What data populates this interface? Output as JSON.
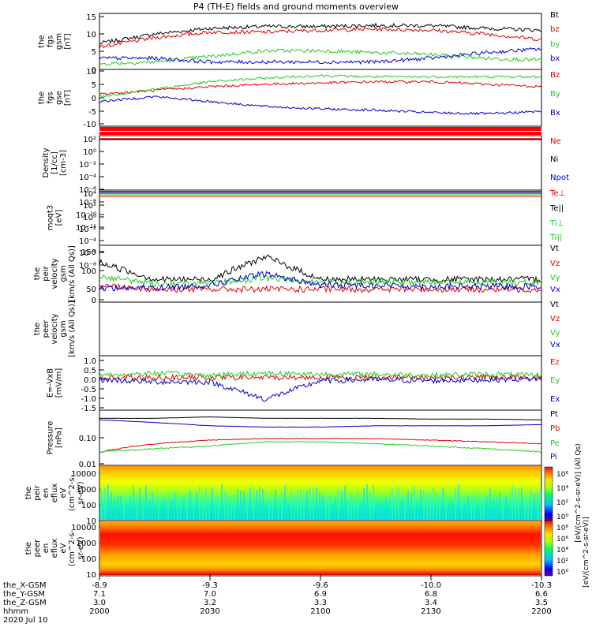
{
  "title": "P4 (TH-E) fields and ground moments overview",
  "colors": {
    "black": "#000000",
    "red": "#e00000",
    "green": "#22cc22",
    "blue": "#0000cc",
    "bar_red": "#ff0000"
  },
  "panels": [
    {
      "id": "fgs-gsm",
      "ylabel": [
        "the",
        "fgs",
        "gsm",
        "[nT]"
      ],
      "yticks": [
        "15",
        "10",
        "5",
        "0"
      ],
      "ylim": [
        0,
        15
      ],
      "scale": "linear",
      "legend": [
        {
          "text": "Bt",
          "color": "#000000"
        },
        {
          "text": "bz",
          "color": "#e00000"
        },
        {
          "text": "by",
          "color": "#22cc22"
        },
        {
          "text": "bx",
          "color": "#0000cc"
        }
      ]
    },
    {
      "id": "fgs-gse",
      "ylabel": [
        "the",
        "fgs",
        "gse",
        "[nT]"
      ],
      "yticks": [
        "10",
        "5",
        "0",
        "-5",
        "-10"
      ],
      "ylim": [
        -13,
        10
      ],
      "scale": "linear",
      "legend": [
        {
          "text": "Bz",
          "color": "#e00000"
        },
        {
          "text": "By",
          "color": "#22cc22"
        },
        {
          "text": "Bx",
          "color": "#0000cc"
        }
      ]
    },
    {
      "id": "density",
      "ylabel": [
        "Density",
        "[1/cc]",
        "[cm-3]"
      ],
      "yticks": [
        "10²",
        "10⁰",
        "10⁻²",
        "10⁻⁴",
        "10⁻⁶",
        "10⁻⁸",
        "10⁻¹⁰",
        "10⁻¹²"
      ],
      "scale": "log",
      "legend": [
        {
          "text": "Ne",
          "color": "#e00000"
        },
        {
          "text": "Ni",
          "color": "#000000"
        },
        {
          "text": "Npot",
          "color": "#0000cc"
        }
      ]
    },
    {
      "id": "temperature",
      "ylabel": [
        "moqt3",
        "[eV]"
      ],
      "yticks": [
        "10⁴",
        "10²",
        "10⁰",
        "10⁻²",
        "10⁻⁴",
        "10⁻⁶",
        "10⁻⁸"
      ],
      "scale": "log",
      "legend": [
        {
          "text": "Te⊥",
          "color": "#e00000"
        },
        {
          "text": "Te||",
          "color": "#000000"
        },
        {
          "text": "Ti⊥",
          "color": "#22cc22"
        },
        {
          "text": "Ti||",
          "color": "#22cc22"
        }
      ]
    },
    {
      "id": "peir-velocity",
      "ylabel": [
        "the",
        "peir",
        "velocity",
        "gsm",
        "[km/s (All Qs)]"
      ],
      "yticks": [
        "150",
        "100",
        "50",
        "0",
        "-50"
      ],
      "ylim": [
        -50,
        150
      ],
      "scale": "linear",
      "legend": [
        {
          "text": "Vt",
          "color": "#000000"
        },
        {
          "text": "Vz",
          "color": "#e00000"
        },
        {
          "text": "Vy",
          "color": "#22cc22"
        },
        {
          "text": "Vx",
          "color": "#0000cc"
        }
      ]
    },
    {
      "id": "peer-velocity",
      "ylabel": [
        "the",
        "peer",
        "velocity",
        "gsm",
        "[km/s (All Qs)]"
      ],
      "yticks": [],
      "scale": "linear",
      "legend": [
        {
          "text": "Vt",
          "color": "#000000"
        },
        {
          "text": "Vz",
          "color": "#e00000"
        },
        {
          "text": "Vy",
          "color": "#22cc22"
        },
        {
          "text": "Vx",
          "color": "#0000cc"
        }
      ]
    },
    {
      "id": "efield",
      "ylabel": [
        "E=-VxB",
        "[mV/m]"
      ],
      "yticks": [
        "1.0",
        "0.5",
        "0.0",
        "-0.5",
        "-1.0",
        "-1.5"
      ],
      "ylim": [
        -1.5,
        1.0
      ],
      "scale": "linear",
      "legend": [
        {
          "text": "Ez",
          "color": "#e00000"
        },
        {
          "text": "Ey",
          "color": "#22cc22"
        },
        {
          "text": "Ex",
          "color": "#0000cc"
        }
      ]
    },
    {
      "id": "pressure",
      "ylabel": [
        "Pressure",
        "[nPa]"
      ],
      "yticks": [
        "0.10",
        "0.01"
      ],
      "scale": "log",
      "legend": [
        {
          "text": "Pt",
          "color": "#000000"
        },
        {
          "text": "Pb",
          "color": "#e00000"
        },
        {
          "text": "Pe",
          "color": "#22cc22"
        },
        {
          "text": "Pi",
          "color": "#0000cc"
        }
      ]
    },
    {
      "id": "peir-eflux",
      "ylabel": [
        "the",
        "peir",
        "en",
        "eflux",
        "eV",
        "(cm^2-s-",
        "sr-eV)"
      ],
      "yticks": [
        "10000",
        "1000",
        "100",
        "10"
      ],
      "scale": "log"
    },
    {
      "id": "peer-eflux",
      "ylabel": [
        "the",
        "peer",
        "en",
        "eflux",
        "eV",
        "(cm^2-s-",
        "sr-eV)"
      ],
      "yticks": [
        "10000",
        "1000",
        "100",
        "10"
      ],
      "scale": "log"
    }
  ],
  "colorbars": [
    {
      "ticks": [
        "10⁶",
        "10⁴",
        "10²",
        "10⁰"
      ],
      "label": "[eV/(cm^2-s-sr-eV)] (All Qs)"
    },
    {
      "ticks": [
        "10⁸",
        "10⁶",
        "10⁴",
        "10²",
        "10⁰"
      ],
      "label": "[eV/(cm^2-s-sr-eV)]"
    }
  ],
  "x_axis": {
    "rows": [
      {
        "label": "the_X-GSM",
        "values": [
          "-8.9",
          "-9.3",
          "-9.6",
          "-10.0",
          "-10.3"
        ]
      },
      {
        "label": "the_Y-GSM",
        "values": [
          "7.1",
          "7.0",
          "6.9",
          "6.8",
          "6.6"
        ]
      },
      {
        "label": "the_Z-GSM",
        "values": [
          "3.0",
          "3.2",
          "3.3",
          "3.4",
          "3.5"
        ]
      },
      {
        "label": "hhmm",
        "values": [
          "2000",
          "2030",
          "2100",
          "2130",
          "2200"
        ]
      }
    ],
    "date": "2020 Jul 10"
  },
  "chart_data": {
    "type": "line",
    "title": "P4 (TH-E) fields and ground moments overview",
    "x_time_range": [
      "2000",
      "2200"
    ],
    "fgs_gsm": {
      "ylim": [
        0,
        15
      ],
      "series": [
        {
          "name": "Bt",
          "values": [
            7,
            9.5,
            11,
            11.5,
            11.5,
            11.8,
            11.7,
            11,
            10.5
          ]
        },
        {
          "name": "bz",
          "values": [
            6,
            8.5,
            10,
            10,
            10.5,
            10.8,
            10.5,
            9.5,
            8
          ]
        },
        {
          "name": "by",
          "values": [
            1.5,
            2,
            3.5,
            5,
            5,
            4.5,
            4,
            3,
            2.5
          ]
        },
        {
          "name": "bx",
          "values": [
            3,
            3,
            2,
            2,
            2,
            2,
            3,
            4.5,
            5.5
          ]
        }
      ]
    },
    "fgs_gse": {
      "ylim": [
        -13,
        10
      ],
      "series": [
        {
          "name": "Bz",
          "values": [
            0,
            1.5,
            3,
            4,
            4.5,
            5,
            5,
            4,
            3
          ]
        },
        {
          "name": "By",
          "values": [
            -1,
            2,
            5,
            6.5,
            7.5,
            7,
            7,
            7,
            7
          ]
        },
        {
          "name": "Bx",
          "values": [
            -3,
            -1,
            -3,
            -5,
            -6,
            -6.5,
            -7.5,
            -8,
            -7
          ]
        }
      ]
    },
    "peir_velocity": {
      "ylim": [
        -50,
        150
      ],
      "series": [
        {
          "name": "Vt",
          "values": [
            90,
            30,
            30,
            110,
            30,
            30,
            30,
            30,
            30
          ]
        },
        {
          "name": "Vz",
          "values": [
            10,
            -5,
            -5,
            -5,
            -5,
            -5,
            -5,
            -5,
            -5
          ]
        },
        {
          "name": "Vy",
          "values": [
            40,
            15,
            15,
            35,
            20,
            20,
            20,
            20,
            20
          ]
        },
        {
          "name": "Vx",
          "values": [
            0,
            0,
            10,
            50,
            10,
            10,
            5,
            5,
            5
          ]
        }
      ]
    },
    "efield": {
      "ylim": [
        -1.5,
        1.0
      ],
      "series": [
        {
          "name": "Ez",
          "values": [
            0,
            0,
            0,
            0,
            0,
            0,
            0,
            0,
            0
          ]
        },
        {
          "name": "Ey",
          "values": [
            0.1,
            0.2,
            0.1,
            0.2,
            0.15,
            0.15,
            0.1,
            0.15,
            0.1
          ]
        },
        {
          "name": "Ex",
          "values": [
            -0.1,
            -0.2,
            -0.2,
            -1.0,
            -0.15,
            -0.1,
            -0.15,
            -0.1,
            -0.05
          ]
        }
      ]
    },
    "pressure": {
      "ylim": [
        0.01,
        0.3
      ],
      "series": [
        {
          "name": "Pt",
          "values": [
            0.2,
            0.2,
            0.22,
            0.2,
            0.2,
            0.2,
            0.19,
            0.19,
            0.18
          ]
        },
        {
          "name": "Pb",
          "values": [
            0.02,
            0.035,
            0.045,
            0.05,
            0.05,
            0.05,
            0.045,
            0.04,
            0.035
          ]
        },
        {
          "name": "Pe",
          "values": [
            0.02,
            0.025,
            0.03,
            0.04,
            0.04,
            0.035,
            0.03,
            0.025,
            0.02
          ]
        },
        {
          "name": "Pi",
          "values": [
            0.18,
            0.15,
            0.12,
            0.11,
            0.11,
            0.12,
            0.12,
            0.12,
            0.13
          ]
        }
      ]
    }
  }
}
